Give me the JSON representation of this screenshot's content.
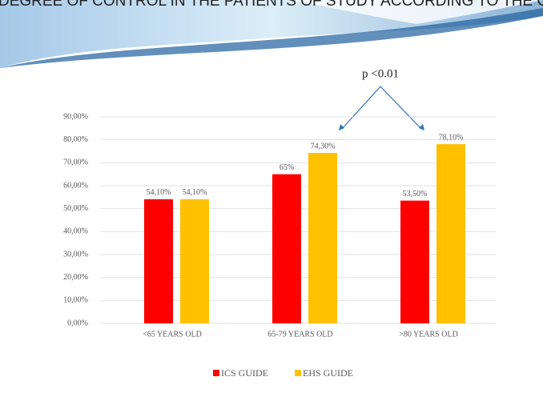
{
  "chart_data": {
    "type": "bar",
    "title": "DEGREE OF CONTROL IN THE PATIENTS OF STUDY ACCORDING TO THE GUIDELINES",
    "annotation": "p <0.01",
    "categories": [
      "<65 YEARS OLD",
      "65-79 YEARS OLD",
      ">80 YEARS OLD"
    ],
    "series": [
      {
        "name": "ICS GUIDE",
        "color": "#ff0000",
        "values": [
          54.1,
          65,
          53.5
        ],
        "value_labels": [
          "54,10%",
          "65%",
          "53,50%"
        ]
      },
      {
        "name": "EHS GUIDE",
        "color": "#ffc000",
        "values": [
          54.1,
          74.3,
          78.1
        ],
        "value_labels": [
          "54,10%",
          "74,30%",
          "78,10%"
        ]
      }
    ],
    "ylim": [
      0,
      90
    ],
    "yticks": [
      {
        "value": 0,
        "label": "0,00%"
      },
      {
        "value": 10,
        "label": "10,00%"
      },
      {
        "value": 20,
        "label": "20,00%"
      },
      {
        "value": 30,
        "label": "30,00%"
      },
      {
        "value": 40,
        "label": "40,00%"
      },
      {
        "value": 50,
        "label": "50,00%"
      },
      {
        "value": 60,
        "label": "60,00%"
      },
      {
        "value": 70,
        "label": "70,00%"
      },
      {
        "value": 80,
        "label": "80,00%"
      },
      {
        "value": 90,
        "label": "90,00%"
      }
    ],
    "grid": true,
    "legend": "bottom"
  }
}
